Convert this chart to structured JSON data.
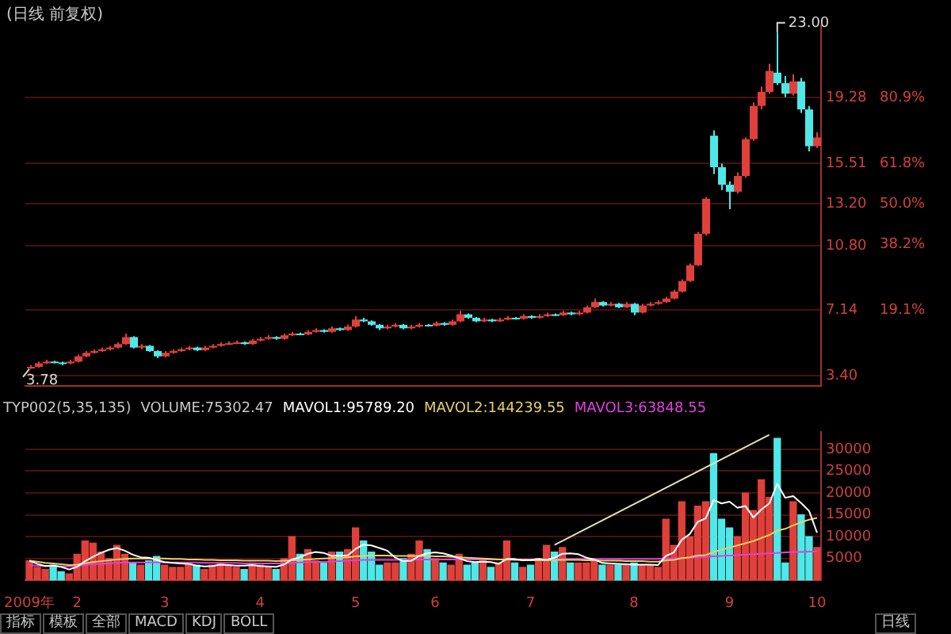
{
  "chart_data": [
    {
      "type": "candlestick",
      "title": "(日线 前复权)",
      "ohlc": [
        [
          3.85,
          4.0,
          3.78,
          3.9
        ],
        [
          3.9,
          4.2,
          3.85,
          4.1
        ],
        [
          4.1,
          4.3,
          4.05,
          4.2
        ],
        [
          4.2,
          4.25,
          4.1,
          4.15
        ],
        [
          4.15,
          4.2,
          4.0,
          4.1
        ],
        [
          4.1,
          4.3,
          4.05,
          4.2
        ],
        [
          4.2,
          4.6,
          4.15,
          4.5
        ],
        [
          4.5,
          4.8,
          4.45,
          4.7
        ],
        [
          4.7,
          4.9,
          4.65,
          4.8
        ],
        [
          4.8,
          5.0,
          4.75,
          4.9
        ],
        [
          4.9,
          5.1,
          4.85,
          5.0
        ],
        [
          5.0,
          5.3,
          4.95,
          5.2
        ],
        [
          5.2,
          5.8,
          5.15,
          5.6
        ],
        [
          5.6,
          5.65,
          4.95,
          5.0
        ],
        [
          5.0,
          5.2,
          4.9,
          5.1
        ],
        [
          5.1,
          5.15,
          4.75,
          4.8
        ],
        [
          4.8,
          4.85,
          4.4,
          4.5
        ],
        [
          4.5,
          4.8,
          4.45,
          4.7
        ],
        [
          4.7,
          4.9,
          4.65,
          4.8
        ],
        [
          4.8,
          5.0,
          4.75,
          4.9
        ],
        [
          4.9,
          5.1,
          4.85,
          5.0
        ],
        [
          5.0,
          5.05,
          4.8,
          4.85
        ],
        [
          4.85,
          5.1,
          4.8,
          5.0
        ],
        [
          5.0,
          5.2,
          4.95,
          5.1
        ],
        [
          5.1,
          5.3,
          5.05,
          5.2
        ],
        [
          5.2,
          5.35,
          5.15,
          5.25
        ],
        [
          5.25,
          5.4,
          5.2,
          5.3
        ],
        [
          5.3,
          5.35,
          5.15,
          5.2
        ],
        [
          5.2,
          5.5,
          5.15,
          5.4
        ],
        [
          5.4,
          5.6,
          5.35,
          5.5
        ],
        [
          5.5,
          5.7,
          5.45,
          5.6
        ],
        [
          5.6,
          5.65,
          5.45,
          5.5
        ],
        [
          5.5,
          5.8,
          5.45,
          5.7
        ],
        [
          5.7,
          5.9,
          5.65,
          5.8
        ],
        [
          5.8,
          5.85,
          5.7,
          5.75
        ],
        [
          5.75,
          6.0,
          5.7,
          5.9
        ],
        [
          5.9,
          6.1,
          5.85,
          6.0
        ],
        [
          6.0,
          6.05,
          5.85,
          5.9
        ],
        [
          5.9,
          6.2,
          5.85,
          6.1
        ],
        [
          6.1,
          6.15,
          5.95,
          6.0
        ],
        [
          6.0,
          6.3,
          5.95,
          6.2
        ],
        [
          6.2,
          6.8,
          6.15,
          6.6
        ],
        [
          6.6,
          6.7,
          6.45,
          6.5
        ],
        [
          6.5,
          6.55,
          6.25,
          6.3
        ],
        [
          6.3,
          6.35,
          6.0,
          6.1
        ],
        [
          6.1,
          6.3,
          6.05,
          6.2
        ],
        [
          6.2,
          6.4,
          6.15,
          6.3
        ],
        [
          6.3,
          6.35,
          6.05,
          6.1
        ],
        [
          6.1,
          6.3,
          6.05,
          6.2
        ],
        [
          6.2,
          6.4,
          6.15,
          6.3
        ],
        [
          6.3,
          6.35,
          6.2,
          6.25
        ],
        [
          6.25,
          6.5,
          6.2,
          6.4
        ],
        [
          6.4,
          6.45,
          6.25,
          6.3
        ],
        [
          6.3,
          6.6,
          6.25,
          6.5
        ],
        [
          6.5,
          7.1,
          6.45,
          6.9
        ],
        [
          6.9,
          6.95,
          6.65,
          6.7
        ],
        [
          6.7,
          6.75,
          6.45,
          6.5
        ],
        [
          6.5,
          6.7,
          6.45,
          6.6
        ],
        [
          6.6,
          6.65,
          6.45,
          6.5
        ],
        [
          6.5,
          6.7,
          6.45,
          6.6
        ],
        [
          6.6,
          6.8,
          6.55,
          6.7
        ],
        [
          6.7,
          6.75,
          6.6,
          6.65
        ],
        [
          6.65,
          6.9,
          6.6,
          6.8
        ],
        [
          6.8,
          6.85,
          6.65,
          6.7
        ],
        [
          6.7,
          6.9,
          6.65,
          6.8
        ],
        [
          6.8,
          7.0,
          6.75,
          6.9
        ],
        [
          6.9,
          6.95,
          6.8,
          6.85
        ],
        [
          6.85,
          7.1,
          6.8,
          7.0
        ],
        [
          7.0,
          7.05,
          6.85,
          6.9
        ],
        [
          6.9,
          7.1,
          6.85,
          7.0
        ],
        [
          7.0,
          7.4,
          6.95,
          7.3
        ],
        [
          7.3,
          7.8,
          7.25,
          7.6
        ],
        [
          7.6,
          7.65,
          7.35,
          7.4
        ],
        [
          7.4,
          7.6,
          7.35,
          7.5
        ],
        [
          7.5,
          7.55,
          7.25,
          7.3
        ],
        [
          7.3,
          7.6,
          7.25,
          7.5
        ],
        [
          7.5,
          7.55,
          6.85,
          7.0
        ],
        [
          7.0,
          7.5,
          6.95,
          7.4
        ],
        [
          7.4,
          7.6,
          7.35,
          7.5
        ],
        [
          7.5,
          7.7,
          7.45,
          7.6
        ],
        [
          7.6,
          7.9,
          7.55,
          7.8
        ],
        [
          7.8,
          8.3,
          7.75,
          8.2
        ],
        [
          8.2,
          8.9,
          8.15,
          8.8
        ],
        [
          8.8,
          9.8,
          8.75,
          9.7
        ],
        [
          9.7,
          11.6,
          9.65,
          11.5
        ],
        [
          11.5,
          13.6,
          11.4,
          13.5
        ],
        [
          17.1,
          17.4,
          14.9,
          15.3
        ],
        [
          15.3,
          15.5,
          14.0,
          14.3
        ],
        [
          14.3,
          14.5,
          12.9,
          13.9
        ],
        [
          13.9,
          15.0,
          13.8,
          14.8
        ],
        [
          14.8,
          17.0,
          14.7,
          16.9
        ],
        [
          16.9,
          19.0,
          16.8,
          18.8
        ],
        [
          18.8,
          19.9,
          18.6,
          19.6
        ],
        [
          19.6,
          21.2,
          19.5,
          20.8
        ],
        [
          20.7,
          23.0,
          20.0,
          20.1
        ],
        [
          20.1,
          20.5,
          19.3,
          19.5
        ],
        [
          19.5,
          20.6,
          19.4,
          20.2
        ],
        [
          20.2,
          20.4,
          18.4,
          18.6
        ],
        [
          18.6,
          18.8,
          16.2,
          16.5
        ],
        [
          16.5,
          17.3,
          16.4,
          17.0
        ]
      ],
      "colors": [
        "#e0403a",
        "#e0403a",
        "#e0403a",
        "#4fe8e8",
        "#4fe8e8",
        "#e0403a",
        "#e0403a",
        "#e0403a",
        "#e0403a",
        "#e0403a",
        "#e0403a",
        "#e0403a",
        "#e0403a",
        "#4fe8e8",
        "#e0403a",
        "#4fe8e8",
        "#4fe8e8",
        "#e0403a",
        "#e0403a",
        "#e0403a",
        "#e0403a",
        "#4fe8e8",
        "#e0403a",
        "#e0403a",
        "#e0403a",
        "#e0403a",
        "#e0403a",
        "#4fe8e8",
        "#e0403a",
        "#e0403a",
        "#e0403a",
        "#4fe8e8",
        "#e0403a",
        "#e0403a",
        "#4fe8e8",
        "#e0403a",
        "#e0403a",
        "#4fe8e8",
        "#e0403a",
        "#4fe8e8",
        "#e0403a",
        "#e0403a",
        "#4fe8e8",
        "#4fe8e8",
        "#4fe8e8",
        "#e0403a",
        "#e0403a",
        "#4fe8e8",
        "#e0403a",
        "#e0403a",
        "#4fe8e8",
        "#e0403a",
        "#4fe8e8",
        "#e0403a",
        "#e0403a",
        "#4fe8e8",
        "#4fe8e8",
        "#e0403a",
        "#4fe8e8",
        "#e0403a",
        "#e0403a",
        "#4fe8e8",
        "#e0403a",
        "#4fe8e8",
        "#e0403a",
        "#e0403a",
        "#4fe8e8",
        "#e0403a",
        "#4fe8e8",
        "#e0403a",
        "#e0403a",
        "#e0403a",
        "#4fe8e8",
        "#e0403a",
        "#4fe8e8",
        "#e0403a",
        "#4fe8e8",
        "#e0403a",
        "#e0403a",
        "#e0403a",
        "#e0403a",
        "#e0403a",
        "#e0403a",
        "#e0403a",
        "#e0403a",
        "#e0403a",
        "#4fe8e8",
        "#4fe8e8",
        "#4fe8e8",
        "#e0403a",
        "#e0403a",
        "#e0403a",
        "#e0403a",
        "#e0403a",
        "#4fe8e8",
        "#4fe8e8",
        "#e0403a",
        "#4fe8e8",
        "#4fe8e8",
        "#e0403a"
      ],
      "ylim": [
        2.8,
        23.4
      ],
      "yticks": [
        {
          "value": 3.4,
          "label": "3.40"
        },
        7.14,
        {
          "value": 10.8,
          "label": "10.80"
        },
        {
          "value": 13.2,
          "label": "13.20"
        },
        15.51,
        19.28
      ],
      "y2lim": [
        -3.06,
        102.04
      ],
      "y2ticks": [
        {
          "value": 19.1,
          "label": "19.1%"
        },
        {
          "value": 38.2,
          "label": "38.2%"
        },
        {
          "value": 50,
          "label": "50.0%"
        },
        {
          "value": 61.8,
          "label": "61.8%"
        },
        {
          "value": 80.9,
          "label": "80.9%"
        }
      ],
      "tick_labels": "y",
      "grid": "y",
      "annotations": [
        "23.00",
        "3.78"
      ]
    },
    {
      "type": "bar",
      "categories": [
        "2009年",
        null,
        null,
        null,
        null,
        null,
        "2",
        null,
        null,
        null,
        null,
        null,
        null,
        null,
        null,
        null,
        null,
        "3",
        null,
        null,
        null,
        null,
        null,
        null,
        null,
        null,
        null,
        null,
        null,
        "4",
        null,
        null,
        null,
        null,
        null,
        null,
        null,
        null,
        null,
        null,
        null,
        "5",
        null,
        null,
        null,
        null,
        null,
        null,
        null,
        null,
        null,
        "6",
        null,
        null,
        null,
        null,
        null,
        null,
        null,
        null,
        null,
        null,
        null,
        "7",
        null,
        null,
        null,
        null,
        null,
        null,
        null,
        null,
        null,
        null,
        null,
        null,
        "8",
        null,
        null,
        null,
        null,
        null,
        null,
        null,
        null,
        null,
        null,
        null,
        "9",
        null,
        null,
        null,
        null,
        null,
        null,
        null,
        null,
        null,
        null,
        "10"
      ],
      "legend": "top",
      "legend_title": "TYP002(5,35,135)",
      "marker": "none",
      "line_style": "solid",
      "series": [
        {
          "type": "bar",
          "colors": [
            "#e0403a",
            "#e0403a",
            "#e0403a",
            "#4fe8e8",
            "#4fe8e8",
            "#e0403a",
            "#e0403a",
            "#e0403a",
            "#e0403a",
            "#e0403a",
            "#e0403a",
            "#e0403a",
            "#e0403a",
            "#4fe8e8",
            "#e0403a",
            "#4fe8e8",
            "#4fe8e8",
            "#e0403a",
            "#e0403a",
            "#e0403a",
            "#e0403a",
            "#4fe8e8",
            "#e0403a",
            "#e0403a",
            "#e0403a",
            "#e0403a",
            "#e0403a",
            "#4fe8e8",
            "#e0403a",
            "#e0403a",
            "#e0403a",
            "#4fe8e8",
            "#e0403a",
            "#e0403a",
            "#4fe8e8",
            "#e0403a",
            "#e0403a",
            "#4fe8e8",
            "#e0403a",
            "#4fe8e8",
            "#e0403a",
            "#e0403a",
            "#4fe8e8",
            "#4fe8e8",
            "#4fe8e8",
            "#e0403a",
            "#e0403a",
            "#4fe8e8",
            "#e0403a",
            "#e0403a",
            "#4fe8e8",
            "#e0403a",
            "#4fe8e8",
            "#e0403a",
            "#e0403a",
            "#4fe8e8",
            "#4fe8e8",
            "#e0403a",
            "#4fe8e8",
            "#e0403a",
            "#e0403a",
            "#4fe8e8",
            "#e0403a",
            "#4fe8e8",
            "#e0403a",
            "#e0403a",
            "#4fe8e8",
            "#e0403a",
            "#4fe8e8",
            "#e0403a",
            "#e0403a",
            "#e0403a",
            "#4fe8e8",
            "#e0403a",
            "#4fe8e8",
            "#e0403a",
            "#4fe8e8",
            "#e0403a",
            "#e0403a",
            "#e0403a",
            "#e0403a",
            "#e0403a",
            "#e0403a",
            "#e0403a",
            "#e0403a",
            "#e0403a",
            "#4fe8e8",
            "#4fe8e8",
            "#4fe8e8",
            "#e0403a",
            "#e0403a",
            "#e0403a",
            "#e0403a",
            "#e0403a",
            "#4fe8e8",
            "#4fe8e8",
            "#e0403a",
            "#4fe8e8",
            "#4fe8e8",
            "#e0403a"
          ],
          "values": [
            4500,
            3000,
            2500,
            3500,
            2000,
            1500,
            6000,
            9000,
            8500,
            6500,
            5000,
            8000,
            6000,
            4000,
            3500,
            4500,
            5500,
            3500,
            3000,
            3000,
            4000,
            3500,
            2500,
            3500,
            4000,
            3500,
            3000,
            2500,
            4000,
            3500,
            3000,
            2500,
            5000,
            10000,
            6000,
            7000,
            4500,
            4000,
            6500,
            6500,
            7000,
            12000,
            9000,
            6500,
            3500,
            4000,
            4000,
            5000,
            6000,
            9000,
            7000,
            5000,
            4000,
            3500,
            6000,
            3500,
            4000,
            4500,
            3000,
            4000,
            9000,
            4000,
            3000,
            3500,
            5000,
            8000,
            6500,
            7500,
            4000,
            4000,
            4000,
            4500,
            3500,
            3500,
            3500,
            3500,
            4000,
            3500,
            3500,
            3000,
            14000,
            8000,
            18000,
            10000,
            17000,
            18000,
            29000,
            14000,
            12000,
            10000,
            20000,
            16000,
            23000,
            19000,
            32500,
            4000,
            18000,
            15000,
            10000,
            7500
          ]
        },
        {
          "type": "line",
          "name": "MAVOL1:95789.20",
          "color": "#ffffff",
          "values": [
            4500,
            3800,
            3300,
            3400,
            3100,
            2500,
            3100,
            4400,
            5400,
            6300,
            7000,
            7400,
            6800,
            5900,
            5300,
            5200,
            4700,
            4200,
            4000,
            3900,
            3800,
            3400,
            3200,
            3300,
            3600,
            3500,
            3400,
            3400,
            3500,
            3300,
            3200,
            3100,
            3600,
            4800,
            5300,
            6100,
            6500,
            6300,
            5600,
            5700,
            5700,
            7200,
            8200,
            8000,
            7400,
            6800,
            5200,
            4400,
            4500,
            5600,
            6200,
            6400,
            6200,
            5700,
            5100,
            4400,
            4200,
            4300,
            4200,
            3800,
            4900,
            4900,
            4600,
            4700,
            4900,
            4700,
            5200,
            6100,
            6200,
            6000,
            5200,
            4800,
            4000,
            3900,
            3800,
            3700,
            3600,
            3600,
            3600,
            3500,
            5600,
            6400,
            9300,
            10600,
            13400,
            14200,
            18400,
            17600,
            18000,
            16600,
            17000,
            14400,
            16200,
            17600,
            22100,
            18900,
            19300,
            17700,
            15900,
            10900
          ]
        },
        {
          "type": "line",
          "name": "MAVOL2:144239.55",
          "color": "#e8d060",
          "values": [
            4500,
            4300,
            4000,
            3900,
            3700,
            3500,
            3600,
            3900,
            4200,
            4400,
            4600,
            4800,
            4900,
            5000,
            5000,
            5000,
            5000,
            5000,
            4900,
            4900,
            4800,
            4800,
            4700,
            4700,
            4600,
            4600,
            4600,
            4500,
            4500,
            4500,
            4500,
            4400,
            4500,
            4600,
            4700,
            4800,
            4900,
            5000,
            5100,
            5200,
            5300,
            5500,
            5600,
            5700,
            5700,
            5700,
            5600,
            5600,
            5600,
            5600,
            5600,
            5500,
            5500,
            5400,
            5300,
            5200,
            5100,
            5000,
            4900,
            4800,
            4800,
            4700,
            4700,
            4600,
            4600,
            4600,
            4700,
            4700,
            4700,
            4700,
            4600,
            4600,
            4500,
            4500,
            4500,
            4400,
            4400,
            4400,
            4300,
            4300,
            4600,
            4700,
            5100,
            5300,
            5700,
            5800,
            6500,
            7000,
            7500,
            8000,
            8500,
            9000,
            9700,
            10400,
            11400,
            11800,
            12600,
            13300,
            13900,
            14300
          ]
        },
        {
          "type": "line",
          "name": "MAVOL3:63848.55",
          "color": "#e040e0",
          "values": [
            3500,
            3400,
            3300,
            3300,
            3200,
            3200,
            3300,
            3500,
            3700,
            3800,
            3900,
            4000,
            4100,
            4100,
            4100,
            4100,
            4100,
            4100,
            4100,
            4100,
            4100,
            4100,
            4000,
            4000,
            4000,
            4000,
            4000,
            3900,
            3900,
            3900,
            3900,
            3900,
            3900,
            4000,
            4100,
            4200,
            4200,
            4300,
            4300,
            4400,
            4500,
            4600,
            4700,
            4700,
            4700,
            4700,
            4700,
            4700,
            4700,
            4800,
            4800,
            4800,
            4800,
            4800,
            4800,
            4800,
            4800,
            4800,
            4800,
            4800,
            4800,
            4800,
            4800,
            4800,
            4800,
            4800,
            4800,
            4900,
            4900,
            4900,
            4900,
            4900,
            4900,
            4900,
            4900,
            4900,
            4900,
            4900,
            4900,
            4900,
            5000,
            5000,
            5100,
            5200,
            5300,
            5400,
            5500,
            5600,
            5700,
            5800,
            5900,
            6000,
            6100,
            6200,
            6300,
            6400,
            6500,
            6500,
            6600,
            6600
          ]
        },
        {
          "type": "line",
          "color": "#e8e0b0",
          "values": [
            null,
            null,
            null,
            null,
            null,
            null,
            null,
            null,
            null,
            null,
            null,
            null,
            null,
            null,
            null,
            null,
            null,
            null,
            null,
            null,
            null,
            null,
            null,
            null,
            null,
            null,
            null,
            null,
            null,
            null,
            null,
            null,
            null,
            null,
            null,
            null,
            null,
            null,
            null,
            null,
            null,
            null,
            null,
            null,
            null,
            null,
            null,
            null,
            null,
            null,
            null,
            null,
            null,
            null,
            null,
            null,
            null,
            null,
            null,
            null,
            null,
            null,
            null,
            null,
            null,
            null,
            8100,
            null,
            null,
            null,
            null,
            null,
            null,
            null,
            null,
            null,
            null,
            null,
            null,
            null,
            null,
            null,
            null,
            null,
            null,
            null,
            null,
            null,
            null,
            null,
            null,
            null,
            null,
            33300,
            null,
            null,
            null,
            null,
            null,
            null
          ]
        }
      ],
      "ylim": [
        0,
        34000
      ],
      "yticks": [
        5000,
        10000,
        15000,
        20000,
        25000,
        30000
      ],
      "grid": "y",
      "annotations": [
        "VOLUME:75302.47",
        "指标",
        "模板",
        "全部",
        "MACD",
        "KDJ",
        "BOLL",
        "日线"
      ]
    }
  ]
}
